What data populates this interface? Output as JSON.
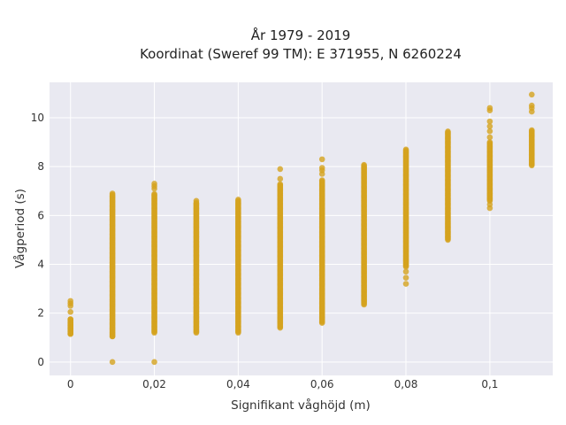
{
  "chart_data": {
    "type": "scatter",
    "title_line1": "År 1979 - 2019",
    "title_line2": "Koordinat (Sweref 99 TM): E 371955, N 6260224",
    "xlabel": "Signifikant våghöjd (m)",
    "ylabel": "Vågperiod (s)",
    "xlim": [
      -0.005,
      0.115
    ],
    "ylim": [
      -0.55,
      11.45
    ],
    "x_ticks": [
      0,
      0.02,
      0.04,
      0.06,
      0.08,
      0.1
    ],
    "x_tick_labels": [
      "0",
      "0,02",
      "0,04",
      "0,06",
      "0,08",
      "0,1"
    ],
    "y_ticks": [
      0,
      2,
      4,
      6,
      8,
      10
    ],
    "y_tick_labels": [
      "0",
      "2",
      "4",
      "6",
      "8",
      "10"
    ],
    "grid": true,
    "legend": "none",
    "colors": {
      "marker": "#d4a21e",
      "plot_bg": "#e9e9f1",
      "grid": "#ffffff"
    },
    "columns": [
      {
        "x": 0,
        "band": [
          1.15,
          1.75
        ],
        "points": [
          1.15,
          1.25,
          1.4,
          1.5,
          1.6,
          1.75,
          2.05,
          2.3,
          2.4,
          2.5
        ]
      },
      {
        "x": 0.01,
        "band": [
          1.05,
          6.85
        ],
        "points": [
          0,
          1.05,
          6.9
        ]
      },
      {
        "x": 0.02,
        "band": [
          1.2,
          6.9
        ],
        "points": [
          0,
          7.1,
          7.2,
          7.3
        ]
      },
      {
        "x": 0.03,
        "band": [
          1.2,
          6.55
        ],
        "points": [
          6.6
        ]
      },
      {
        "x": 0.04,
        "band": [
          1.2,
          6.6
        ],
        "points": [
          6.65
        ]
      },
      {
        "x": 0.05,
        "band": [
          1.4,
          7.3
        ],
        "points": [
          7.5,
          7.9
        ]
      },
      {
        "x": 0.06,
        "band": [
          1.6,
          7.45
        ],
        "points": [
          7.7,
          7.85,
          7.95,
          8.3
        ]
      },
      {
        "x": 0.07,
        "band": [
          2.35,
          8.1
        ],
        "points": []
      },
      {
        "x": 0.08,
        "band": [
          3.9,
          8.7
        ],
        "points": [
          3.2,
          3.45,
          3.7
        ]
      },
      {
        "x": 0.09,
        "band": [
          5.0,
          9.45
        ],
        "points": []
      },
      {
        "x": 0.1,
        "band": [
          6.6,
          9.0
        ],
        "points": [
          6.3,
          6.45,
          9.2,
          9.45,
          9.65,
          9.85,
          10.3,
          10.4
        ]
      },
      {
        "x": 0.11,
        "band": [
          8.05,
          9.5
        ],
        "points": [
          10.25,
          10.4,
          10.5,
          10.95
        ]
      }
    ]
  }
}
